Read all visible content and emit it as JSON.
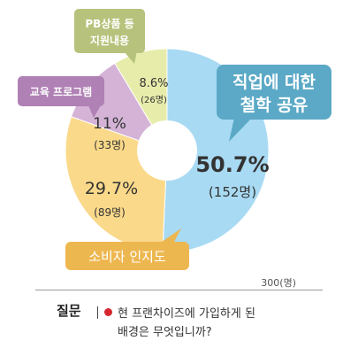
{
  "chart_data": {
    "type": "pie",
    "categories": [
      "직업에 대한 철학 공유",
      "소비자 인지도",
      "교육 프로그램",
      "PB상품 등 지원내용"
    ],
    "values": [
      50.7,
      29.7,
      11,
      8.6
    ],
    "counts": [
      152,
      89,
      33,
      26
    ],
    "value_labels": [
      "50.7%",
      "29.7%",
      "11%",
      "8.6%"
    ],
    "count_labels": [
      "(152명)",
      "(89명)",
      "(33명)",
      "(26명)"
    ],
    "colors": [
      "#a8daf3",
      "#fad98a",
      "#d4b3d7",
      "#e8ecab"
    ],
    "box_colors": [
      "#5ba9c6",
      "#edb750",
      "#b081b4",
      "#b7c37c"
    ],
    "donut": true
  },
  "total_label": "300(명)",
  "question": {
    "label": "질문 ",
    "line1": "현 프랜차이즈에 가입하게 된",
    "line2": "배경은 무엇입니까?"
  }
}
